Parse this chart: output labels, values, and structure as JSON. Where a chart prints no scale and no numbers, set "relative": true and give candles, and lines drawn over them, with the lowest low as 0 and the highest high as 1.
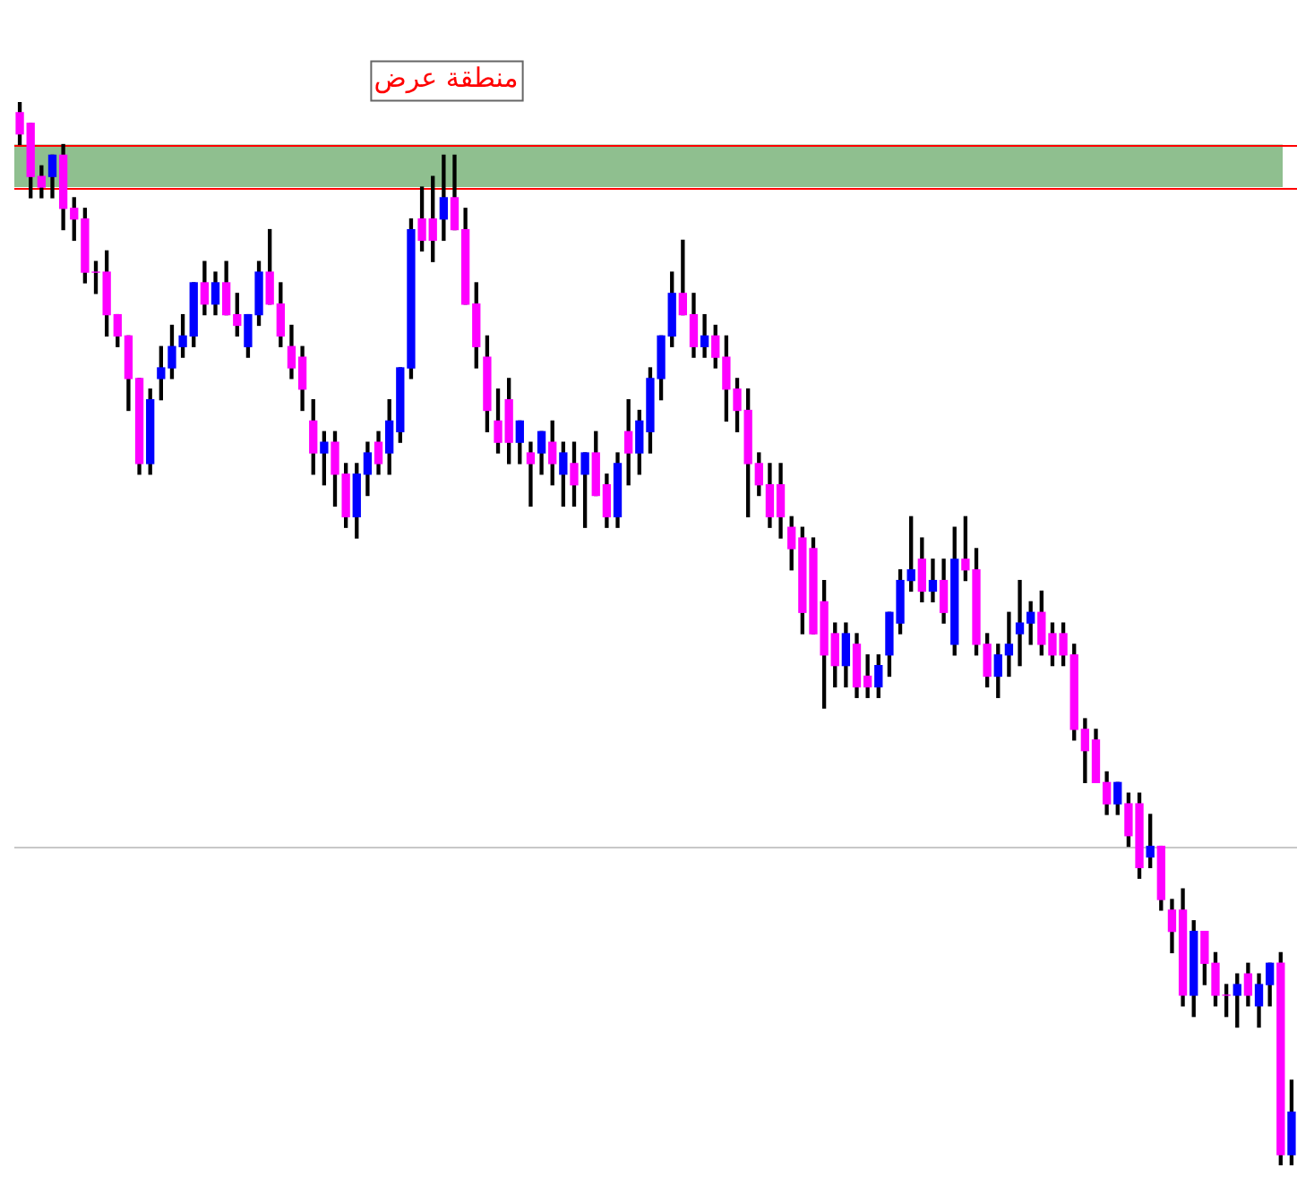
{
  "chart_data": {
    "type": "candlestick",
    "relative": true,
    "legend": false,
    "categories": [
      null,
      null,
      null,
      null,
      null,
      null,
      null,
      null,
      null,
      null,
      null,
      null,
      null,
      null,
      null,
      null,
      null,
      null,
      null,
      null,
      null,
      null,
      null,
      null,
      null,
      null,
      null,
      null,
      null,
      null,
      null,
      null,
      null,
      null,
      null,
      null,
      null,
      null,
      null,
      null,
      null,
      null,
      null,
      null,
      null,
      null,
      null,
      null,
      null,
      null,
      null,
      null,
      null,
      null,
      null,
      null,
      null,
      null,
      null,
      null,
      null,
      null,
      null,
      null,
      null,
      null,
      null,
      null,
      null,
      null,
      null,
      null,
      null,
      null,
      null,
      null,
      null,
      null,
      null,
      null,
      null,
      null,
      null,
      null,
      null,
      null,
      null,
      null,
      null,
      null,
      null,
      null,
      null,
      null,
      null,
      null,
      null,
      null,
      null,
      null,
      null,
      null,
      null,
      null,
      null,
      null,
      null,
      null,
      null,
      null,
      null,
      null,
      null,
      null,
      null,
      null,
      null,
      null
    ],
    "ohlc": [
      [
        0.99,
        1.0,
        0.96,
        0.97
      ],
      [
        0.98,
        0.98,
        0.91,
        0.93
      ],
      [
        0.93,
        0.94,
        0.91,
        0.92
      ],
      [
        0.93,
        0.95,
        0.91,
        0.95
      ],
      [
        0.95,
        0.96,
        0.88,
        0.9
      ],
      [
        0.9,
        0.91,
        0.87,
        0.89
      ],
      [
        0.89,
        0.9,
        0.83,
        0.84
      ],
      [
        0.84,
        0.85,
        0.82,
        0.84
      ],
      [
        0.84,
        0.86,
        0.78,
        0.8
      ],
      [
        0.8,
        0.8,
        0.77,
        0.78
      ],
      [
        0.78,
        0.78,
        0.71,
        0.74
      ],
      [
        0.74,
        0.74,
        0.65,
        0.66
      ],
      [
        0.66,
        0.73,
        0.65,
        0.72
      ],
      [
        0.74,
        0.77,
        0.72,
        0.75
      ],
      [
        0.75,
        0.79,
        0.74,
        0.77
      ],
      [
        0.77,
        0.8,
        0.76,
        0.78
      ],
      [
        0.78,
        0.83,
        0.77,
        0.83
      ],
      [
        0.83,
        0.85,
        0.8,
        0.81
      ],
      [
        0.81,
        0.84,
        0.8,
        0.83
      ],
      [
        0.83,
        0.85,
        0.8,
        0.8
      ],
      [
        0.8,
        0.82,
        0.78,
        0.79
      ],
      [
        0.77,
        0.8,
        0.76,
        0.8
      ],
      [
        0.8,
        0.85,
        0.79,
        0.84
      ],
      [
        0.84,
        0.88,
        0.81,
        0.81
      ],
      [
        0.81,
        0.83,
        0.77,
        0.78
      ],
      [
        0.77,
        0.79,
        0.74,
        0.75
      ],
      [
        0.76,
        0.77,
        0.71,
        0.73
      ],
      [
        0.7,
        0.72,
        0.65,
        0.67
      ],
      [
        0.67,
        0.69,
        0.64,
        0.68
      ],
      [
        0.68,
        0.69,
        0.62,
        0.65
      ],
      [
        0.65,
        0.66,
        0.6,
        0.61
      ],
      [
        0.61,
        0.66,
        0.59,
        0.65
      ],
      [
        0.65,
        0.68,
        0.63,
        0.67
      ],
      [
        0.68,
        0.69,
        0.65,
        0.66
      ],
      [
        0.67,
        0.72,
        0.65,
        0.7
      ],
      [
        0.69,
        0.75,
        0.68,
        0.75
      ],
      [
        0.75,
        0.89,
        0.74,
        0.88
      ],
      [
        0.89,
        0.92,
        0.86,
        0.87
      ],
      [
        0.89,
        0.93,
        0.85,
        0.87
      ],
      [
        0.89,
        0.95,
        0.87,
        0.91
      ],
      [
        0.91,
        0.95,
        0.88,
        0.88
      ],
      [
        0.88,
        0.9,
        0.81,
        0.81
      ],
      [
        0.81,
        0.83,
        0.75,
        0.77
      ],
      [
        0.76,
        0.78,
        0.69,
        0.71
      ],
      [
        0.7,
        0.73,
        0.67,
        0.68
      ],
      [
        0.72,
        0.74,
        0.66,
        0.68
      ],
      [
        0.68,
        0.7,
        0.66,
        0.7
      ],
      [
        0.67,
        0.68,
        0.62,
        0.66
      ],
      [
        0.67,
        0.69,
        0.65,
        0.69
      ],
      [
        0.68,
        0.7,
        0.64,
        0.66
      ],
      [
        0.65,
        0.68,
        0.62,
        0.67
      ],
      [
        0.66,
        0.68,
        0.62,
        0.64
      ],
      [
        0.65,
        0.67,
        0.6,
        0.67
      ],
      [
        0.67,
        0.69,
        0.63,
        0.63
      ],
      [
        0.64,
        0.65,
        0.6,
        0.61
      ],
      [
        0.61,
        0.67,
        0.6,
        0.66
      ],
      [
        0.69,
        0.72,
        0.64,
        0.67
      ],
      [
        0.67,
        0.71,
        0.65,
        0.7
      ],
      [
        0.69,
        0.75,
        0.67,
        0.74
      ],
      [
        0.74,
        0.78,
        0.72,
        0.78
      ],
      [
        0.78,
        0.84,
        0.77,
        0.82
      ],
      [
        0.82,
        0.87,
        0.8,
        0.8
      ],
      [
        0.8,
        0.82,
        0.76,
        0.77
      ],
      [
        0.77,
        0.8,
        0.76,
        0.78
      ],
      [
        0.78,
        0.79,
        0.75,
        0.76
      ],
      [
        0.76,
        0.78,
        0.7,
        0.73
      ],
      [
        0.73,
        0.74,
        0.69,
        0.71
      ],
      [
        0.71,
        0.73,
        0.61,
        0.66
      ],
      [
        0.66,
        0.67,
        0.63,
        0.64
      ],
      [
        0.64,
        0.66,
        0.6,
        0.61
      ],
      [
        0.64,
        0.66,
        0.59,
        0.61
      ],
      [
        0.6,
        0.61,
        0.56,
        0.58
      ],
      [
        0.59,
        0.6,
        0.5,
        0.52
      ],
      [
        0.58,
        0.59,
        0.5,
        0.5
      ],
      [
        0.53,
        0.55,
        0.43,
        0.48
      ],
      [
        0.5,
        0.51,
        0.45,
        0.47
      ],
      [
        0.47,
        0.51,
        0.45,
        0.5
      ],
      [
        0.49,
        0.5,
        0.44,
        0.45
      ],
      [
        0.46,
        0.48,
        0.44,
        0.45
      ],
      [
        0.45,
        0.48,
        0.44,
        0.47
      ],
      [
        0.48,
        0.52,
        0.46,
        0.52
      ],
      [
        0.51,
        0.56,
        0.5,
        0.55
      ],
      [
        0.55,
        0.61,
        0.54,
        0.56
      ],
      [
        0.57,
        0.59,
        0.53,
        0.54
      ],
      [
        0.54,
        0.57,
        0.53,
        0.55
      ],
      [
        0.55,
        0.57,
        0.51,
        0.52
      ],
      [
        0.49,
        0.6,
        0.48,
        0.57
      ],
      [
        0.57,
        0.61,
        0.55,
        0.56
      ],
      [
        0.56,
        0.58,
        0.48,
        0.49
      ],
      [
        0.49,
        0.5,
        0.45,
        0.46
      ],
      [
        0.46,
        0.49,
        0.44,
        0.48
      ],
      [
        0.48,
        0.52,
        0.46,
        0.49
      ],
      [
        0.5,
        0.55,
        0.47,
        0.51
      ],
      [
        0.51,
        0.53,
        0.49,
        0.52
      ],
      [
        0.52,
        0.54,
        0.48,
        0.49
      ],
      [
        0.5,
        0.51,
        0.47,
        0.48
      ],
      [
        0.5,
        0.51,
        0.47,
        0.48
      ],
      [
        0.48,
        0.49,
        0.4,
        0.41
      ],
      [
        0.41,
        0.42,
        0.36,
        0.39
      ],
      [
        0.4,
        0.41,
        0.36,
        0.36
      ],
      [
        0.36,
        0.37,
        0.33,
        0.34
      ],
      [
        0.34,
        0.36,
        0.33,
        0.36
      ],
      [
        0.34,
        0.35,
        0.3,
        0.31
      ],
      [
        0.34,
        0.35,
        0.27,
        0.28
      ],
      [
        0.29,
        0.33,
        0.28,
        0.3
      ],
      [
        0.3,
        0.3,
        0.24,
        0.25
      ],
      [
        0.24,
        0.25,
        0.2,
        0.22
      ],
      [
        0.24,
        0.26,
        0.15,
        0.16
      ],
      [
        0.16,
        0.23,
        0.14,
        0.22
      ],
      [
        0.22,
        0.22,
        0.17,
        0.19
      ],
      [
        0.19,
        0.2,
        0.15,
        0.16
      ],
      [
        0.16,
        0.17,
        0.14,
        0.16
      ],
      [
        0.16,
        0.18,
        0.13,
        0.17
      ],
      [
        0.18,
        0.19,
        0.15,
        0.16
      ],
      [
        0.15,
        0.18,
        0.13,
        0.17
      ],
      [
        0.17,
        0.19,
        0.15,
        0.19
      ],
      [
        0.19,
        0.2,
        0.0,
        0.01
      ],
      [
        0.01,
        0.08,
        0.0,
        0.05
      ]
    ],
    "colors": [
      "#ff00ff",
      "#ff00ff",
      "#ff00ff",
      "#0000ff",
      "#ff00ff",
      "#ff00ff",
      "#ff00ff",
      "#ff00ff",
      "#ff00ff",
      "#ff00ff",
      "#ff00ff",
      "#ff00ff",
      "#0000ff",
      "#0000ff",
      "#0000ff",
      "#0000ff",
      "#0000ff",
      "#ff00ff",
      "#0000ff",
      "#ff00ff",
      "#ff00ff",
      "#0000ff",
      "#0000ff",
      "#ff00ff",
      "#ff00ff",
      "#ff00ff",
      "#ff00ff",
      "#ff00ff",
      "#0000ff",
      "#ff00ff",
      "#ff00ff",
      "#0000ff",
      "#0000ff",
      "#ff00ff",
      "#0000ff",
      "#0000ff",
      "#0000ff",
      "#ff00ff",
      "#ff00ff",
      "#0000ff",
      "#ff00ff",
      "#ff00ff",
      "#ff00ff",
      "#ff00ff",
      "#ff00ff",
      "#ff00ff",
      "#0000ff",
      "#ff00ff",
      "#0000ff",
      "#ff00ff",
      "#0000ff",
      "#ff00ff",
      "#0000ff",
      "#ff00ff",
      "#ff00ff",
      "#0000ff",
      "#ff00ff",
      "#0000ff",
      "#0000ff",
      "#0000ff",
      "#0000ff",
      "#ff00ff",
      "#ff00ff",
      "#0000ff",
      "#ff00ff",
      "#ff00ff",
      "#ff00ff",
      "#ff00ff",
      "#ff00ff",
      "#ff00ff",
      "#ff00ff",
      "#ff00ff",
      "#ff00ff",
      "#ff00ff",
      "#ff00ff",
      "#ff00ff",
      "#0000ff",
      "#ff00ff",
      "#ff00ff",
      "#0000ff",
      "#0000ff",
      "#0000ff",
      "#0000ff",
      "#ff00ff",
      "#0000ff",
      "#ff00ff",
      "#0000ff",
      "#ff00ff",
      "#ff00ff",
      "#ff00ff",
      "#0000ff",
      "#0000ff",
      "#0000ff",
      "#0000ff",
      "#ff00ff",
      "#ff00ff",
      "#ff00ff",
      "#ff00ff",
      "#ff00ff",
      "#ff00ff",
      "#ff00ff",
      "#0000ff",
      "#ff00ff",
      "#ff00ff",
      "#0000ff",
      "#ff00ff",
      "#ff00ff",
      "#ff00ff",
      "#0000ff",
      "#ff00ff",
      "#ff00ff",
      "#ff00ff",
      "#0000ff",
      "#ff00ff",
      "#0000ff",
      "#0000ff",
      "#ff00ff",
      "#0000ff"
    ],
    "bands": [
      {
        "axis": "y",
        "from": 0.92,
        "to": 0.96,
        "label": "منطقة عرض",
        "color": "#8fbf8f"
      }
    ],
    "ref_lines": [
      {
        "axis": "y",
        "value": 0.96,
        "color": "#ff0000"
      },
      {
        "axis": "y",
        "value": 0.92,
        "color": "#ff0000"
      },
      {
        "axis": "y",
        "value": 0.3,
        "color": "#c8c8c8"
      }
    ]
  }
}
